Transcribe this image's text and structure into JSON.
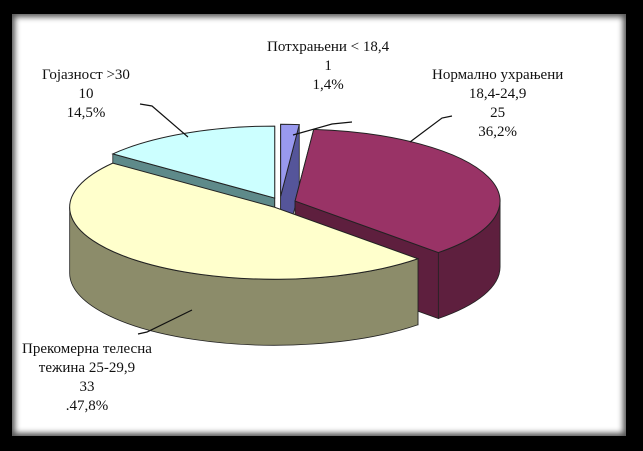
{
  "chart_data": {
    "type": "pie",
    "style": "3d-exploded",
    "slices": [
      {
        "label": "Потхрањени < 18,4",
        "value": 1,
        "percent": "1,4%",
        "color": "#9999ee",
        "side_color": "#55559a"
      },
      {
        "label": "Нормално ухрањени 18,4-24,9",
        "value": 25,
        "percent": "36,2%",
        "color": "#993366",
        "side_color": "#5e1f3e"
      },
      {
        "label": "Прекомерна телесна тежина 25-29,9",
        "value": 33,
        "percent": "47,8%",
        "color": "#ffffcc",
        "side_color": "#8c8c6a"
      },
      {
        "label": "Гојазност >30",
        "value": 10,
        "percent": "14,5%",
        "color": "#ccffff",
        "side_color": "#5e8a8a"
      }
    ],
    "labels": {
      "underweight": {
        "line1": "Потхрањени < 18,4",
        "count": "1",
        "percent": "1,4%"
      },
      "normal": {
        "line1": "Нормално ухрањени",
        "line2": "18,4-24,9",
        "count": "25",
        "percent": "36,2%"
      },
      "overweight": {
        "line1": "Прекомерна телесна",
        "line2": "тежина 25-29,9",
        "count": "33",
        "percent": ".47,8%"
      },
      "obese": {
        "line1": "Гојазност >30",
        "count": "10",
        "percent": "14,5%"
      }
    }
  }
}
